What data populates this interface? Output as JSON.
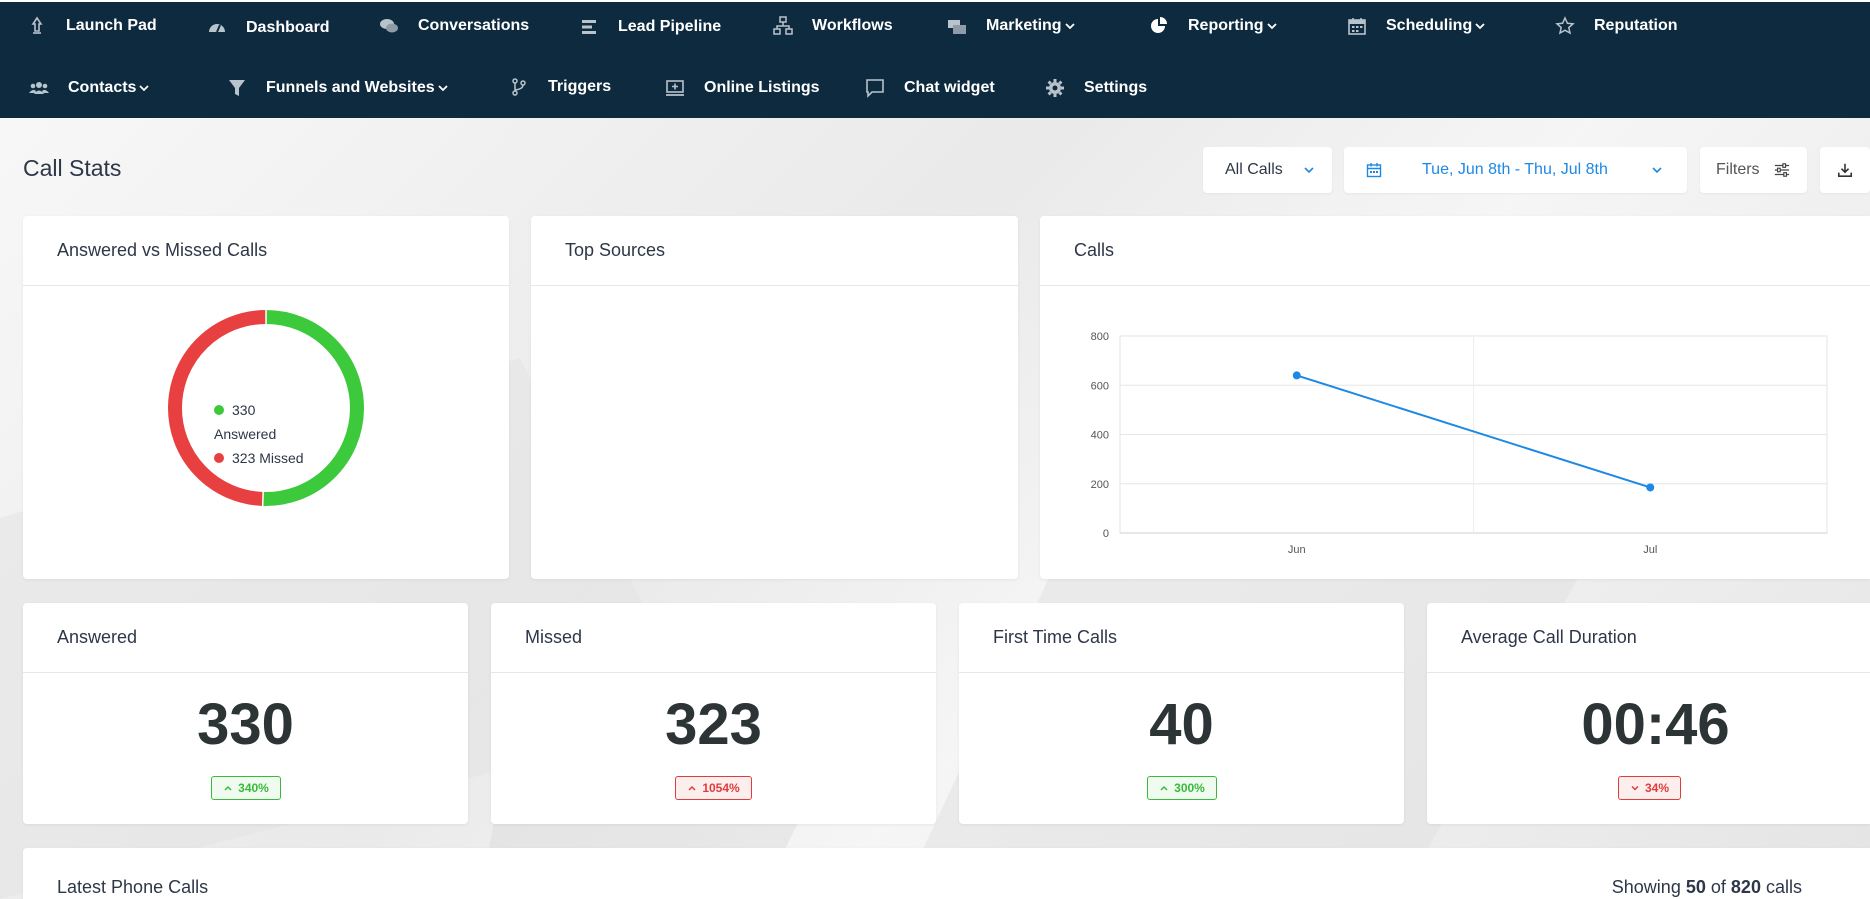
{
  "nav": {
    "row1": [
      {
        "label": "Launch Pad",
        "icon": "rocket-icon",
        "dropdown": false
      },
      {
        "label": "Dashboard",
        "icon": "speedometer-icon",
        "dropdown": false
      },
      {
        "label": "Conversations",
        "icon": "chat-bubbles-icon",
        "dropdown": false
      },
      {
        "label": "Lead Pipeline",
        "icon": "bars-icon",
        "dropdown": false
      },
      {
        "label": "Workflows",
        "icon": "sitemap-icon",
        "dropdown": false
      },
      {
        "label": "Marketing",
        "icon": "mail-bulk-icon",
        "dropdown": true
      },
      {
        "label": "Reporting",
        "icon": "pie-chart-icon",
        "dropdown": true
      },
      {
        "label": "Scheduling",
        "icon": "calendar-icon",
        "dropdown": true
      },
      {
        "label": "Reputation",
        "icon": "star-icon",
        "dropdown": false
      }
    ],
    "row2": [
      {
        "label": "Contacts",
        "icon": "users-icon",
        "dropdown": true
      },
      {
        "label": "Funnels and Websites",
        "icon": "filter-icon",
        "dropdown": true
      },
      {
        "label": "Triggers",
        "icon": "branch-icon",
        "dropdown": false
      },
      {
        "label": "Online Listings",
        "icon": "listing-icon",
        "dropdown": false
      },
      {
        "label": "Chat widget",
        "icon": "chat-icon",
        "dropdown": false
      },
      {
        "label": "Settings",
        "icon": "gear-icon",
        "dropdown": false
      }
    ]
  },
  "header": {
    "title": "Call Stats",
    "call_filter": "All Calls",
    "date_range": "Tue, Jun 8th - Thu, Jul 8th",
    "filters_label": "Filters"
  },
  "cards": {
    "answered_vs_missed": {
      "title": "Answered vs Missed Calls",
      "answered_count": "330",
      "answered_label": "Answered",
      "missed_text": "323 Missed"
    },
    "top_sources": {
      "title": "Top Sources"
    },
    "calls_chart": {
      "title": "Calls"
    }
  },
  "stats": [
    {
      "title": "Answered",
      "value": "330",
      "change": "340%",
      "direction": "up"
    },
    {
      "title": "Missed",
      "value": "323",
      "change": "1054%",
      "direction": "up-bad"
    },
    {
      "title": "First Time Calls",
      "value": "40",
      "change": "300%",
      "direction": "up"
    },
    {
      "title": "Average Call Duration",
      "value": "00:46",
      "change": "34%",
      "direction": "down-bad"
    }
  ],
  "latest": {
    "title": "Latest Phone Calls",
    "showing_prefix": "Showing",
    "showing_count": "50",
    "showing_of": "of",
    "showing_total": "820",
    "showing_suffix": "calls"
  },
  "colors": {
    "nav_bg": "#0e2a3f",
    "answered": "#3cc93c",
    "missed": "#e84040",
    "accent_blue": "#1e88e5"
  },
  "chart_data": [
    {
      "type": "pie",
      "categories": [
        "Answered",
        "Missed"
      ],
      "values": [
        330,
        323
      ]
    },
    {
      "type": "line",
      "categories": [
        "Jun",
        "Jul"
      ],
      "series": [
        {
          "values": [
            640,
            185
          ]
        }
      ],
      "ylim": [
        0,
        800
      ],
      "yticks": [
        0,
        200,
        400,
        600,
        800
      ],
      "grid": true
    }
  ]
}
